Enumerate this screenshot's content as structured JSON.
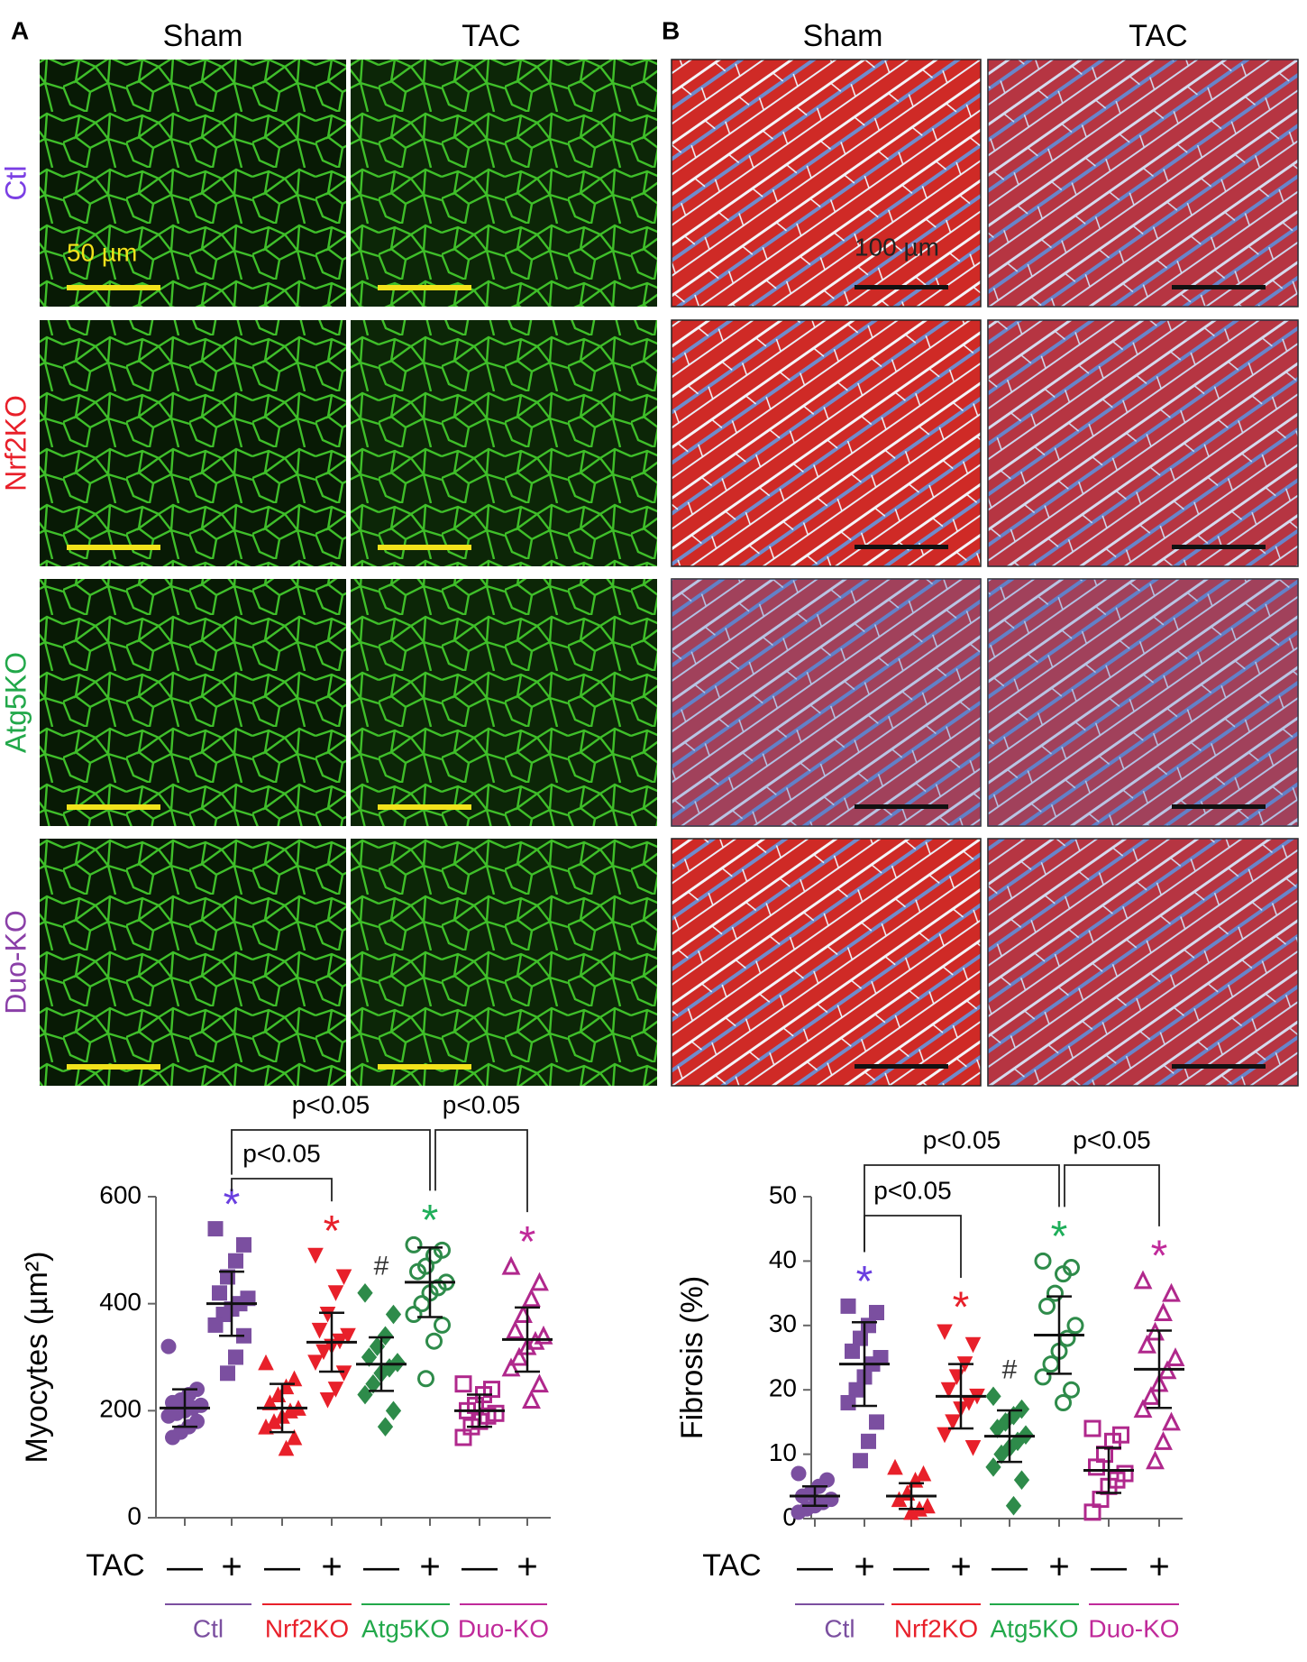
{
  "panels": [
    {
      "letter": "A",
      "columns": [
        "Sham",
        "TAC"
      ],
      "rows": [
        "Ctl",
        "Nrf2KO",
        "Atg5KO",
        "Duo-KO"
      ],
      "row_colors": [
        "#7b3fe4",
        "#e8202a",
        "#22a84a",
        "#8a3fa8"
      ],
      "scale_label": "50 µm"
    },
    {
      "letter": "B",
      "columns": [
        "Sham",
        "TAC"
      ],
      "scale_label": "100 µm"
    }
  ],
  "chart_data": [
    {
      "type": "dot",
      "ylabel": "Myocytes (µm²)",
      "ylim": [
        0,
        600
      ],
      "yticks": [
        0,
        200,
        400,
        600
      ],
      "x_label": "TAC",
      "categories": [
        "—",
        "+",
        "—",
        "+",
        "—",
        "+",
        "—",
        "+"
      ],
      "groups": [
        "Ctl",
        "Nrf2KO",
        "Atg5KO",
        "Duo-KO"
      ],
      "group_colors": [
        "#7b4fa0",
        "#e8202a",
        "#22a84a",
        "#c02a9a"
      ],
      "colors": [
        "#7b4fa0",
        "#7b4fa0",
        "#e8202a",
        "#e8202a",
        "#2e8b4a",
        "#2e8b4a",
        "#b0288c",
        "#b0288c"
      ],
      "markers": [
        "circle",
        "square",
        "triangle-up",
        "triangle-down",
        "diamond",
        "open-circle",
        "open-square",
        "open-triangle"
      ],
      "points": [
        [
          320,
          240,
          230,
          220,
          215,
          210,
          205,
          200,
          195,
          190,
          180,
          170,
          160,
          150
        ],
        [
          540,
          510,
          480,
          450,
          420,
          410,
          400,
          390,
          380,
          360,
          340,
          300,
          270
        ],
        [
          290,
          260,
          245,
          230,
          215,
          205,
          200,
          190,
          180,
          170,
          150,
          130
        ],
        [
          490,
          450,
          420,
          380,
          350,
          340,
          330,
          320,
          310,
          290,
          270,
          240,
          220
        ],
        [
          420,
          380,
          340,
          320,
          300,
          290,
          280,
          270,
          250,
          230,
          200,
          170
        ],
        [
          510,
          500,
          490,
          470,
          460,
          440,
          430,
          420,
          400,
          380,
          360,
          330,
          260
        ],
        [
          250,
          240,
          230,
          210,
          200,
          195,
          190,
          180,
          170,
          150
        ],
        [
          470,
          440,
          410,
          380,
          350,
          340,
          330,
          320,
          300,
          280,
          250,
          220
        ]
      ],
      "means": [
        205,
        400,
        205,
        328,
        287,
        440,
        200,
        333
      ],
      "sds": [
        35,
        60,
        45,
        55,
        50,
        65,
        30,
        60
      ],
      "annotations": [
        null,
        "*",
        null,
        "*",
        "#",
        "*",
        null,
        "*"
      ],
      "annotation_colors": [
        null,
        "#6a3fe0",
        null,
        "#e8202a",
        "#333333",
        "#1fae5a",
        null,
        "#c02a9a"
      ],
      "comparisons": [
        {
          "from": 1,
          "to": 3,
          "label": "p<0.05"
        },
        {
          "from": 1,
          "to": 5,
          "label": "p<0.05"
        },
        {
          "from": 5,
          "to": 7,
          "label": "p<0.05"
        }
      ]
    },
    {
      "type": "dot",
      "ylabel": "Fibrosis (%)",
      "ylim": [
        0,
        50
      ],
      "yticks": [
        0,
        10,
        20,
        30,
        40,
        50
      ],
      "x_label": "TAC",
      "categories": [
        "—",
        "+",
        "—",
        "+",
        "—",
        "+",
        "—",
        "+"
      ],
      "groups": [
        "Ctl",
        "Nrf2KO",
        "Atg5KO",
        "Duo-KO"
      ],
      "group_colors": [
        "#7b4fa0",
        "#e8202a",
        "#22a84a",
        "#c02a9a"
      ],
      "colors": [
        "#7b4fa0",
        "#7b4fa0",
        "#e8202a",
        "#e8202a",
        "#2e8b4a",
        "#2e8b4a",
        "#b0288c",
        "#b0288c"
      ],
      "markers": [
        "circle",
        "square",
        "triangle-up",
        "triangle-down",
        "diamond",
        "open-circle",
        "open-square",
        "open-triangle"
      ],
      "points": [
        [
          7,
          6,
          5,
          4,
          3.5,
          3,
          2.5,
          2,
          1.5,
          1
        ],
        [
          33,
          32,
          30,
          28,
          26,
          25,
          24,
          22,
          20,
          18,
          15,
          12,
          9
        ],
        [
          8,
          7,
          6,
          4,
          3,
          2,
          1.5,
          1
        ],
        [
          29,
          27,
          24,
          22,
          20,
          19,
          18,
          17,
          15,
          13,
          11
        ],
        [
          19,
          17,
          16,
          15,
          14,
          13,
          12,
          11,
          10,
          8,
          6,
          2
        ],
        [
          40,
          39,
          38,
          35,
          33,
          30,
          28,
          26,
          24,
          22,
          20,
          18
        ],
        [
          14,
          13,
          12,
          10,
          8,
          7,
          6,
          5,
          3,
          1
        ],
        [
          37,
          35,
          32,
          29,
          27,
          25,
          23,
          21,
          19,
          17,
          15,
          12,
          9
        ]
      ],
      "means": [
        3.5,
        24,
        3.5,
        19,
        12.8,
        28.5,
        7.5,
        23.2
      ],
      "sds": [
        1.5,
        6.5,
        2,
        5,
        4,
        6,
        3.5,
        6
      ],
      "annotations": [
        null,
        "*",
        null,
        "*",
        "#",
        "*",
        null,
        "*"
      ],
      "annotation_colors": [
        null,
        "#6a3fe0",
        null,
        "#e8202a",
        "#333333",
        "#1fae5a",
        null,
        "#c02a9a"
      ],
      "comparisons": [
        {
          "from": 1,
          "to": 5,
          "label": "p<0.05"
        },
        {
          "from": 1,
          "to": 3,
          "label": "p<0.05"
        },
        {
          "from": 5,
          "to": 7,
          "label": "p<0.05"
        }
      ]
    }
  ]
}
